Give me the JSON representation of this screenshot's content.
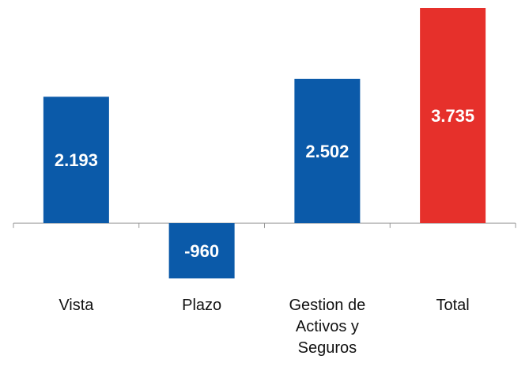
{
  "chart_data": {
    "type": "bar",
    "categories": [
      "Vista",
      "Plazo",
      "Gestion de Activos y Seguros",
      "Total"
    ],
    "values": [
      2193,
      -960,
      2502,
      3735
    ],
    "value_labels": [
      "2.193",
      "-960",
      "2.502",
      "3.735"
    ],
    "colors": [
      "#0b5aa9",
      "#0b5aa9",
      "#0b5aa9",
      "#e6302b"
    ]
  }
}
